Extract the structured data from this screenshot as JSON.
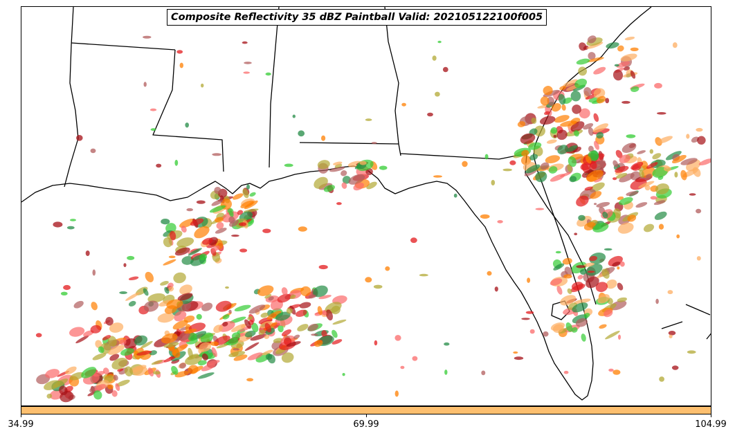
{
  "title": "Composite Reflectivity 35 dBZ Paintball Valid: 202105122100f005",
  "colorbar": {
    "color": "#fdbf6f",
    "ticks": [
      "34.99",
      "69.99",
      "104.99"
    ]
  },
  "palette": {
    "orange": "#ff7f00",
    "light_orange": "#fdae61",
    "red": "#e31a1c",
    "light_red": "#fb6a6a",
    "dark_red": "#a50f15",
    "green": "#33cc33",
    "dark_green": "#238b45",
    "olive": "#b2a833",
    "brown": "#b15c5c"
  },
  "map": {
    "features": [
      "state-borders",
      "coastlines",
      "gulf-of-mexico",
      "florida-peninsula"
    ]
  }
}
